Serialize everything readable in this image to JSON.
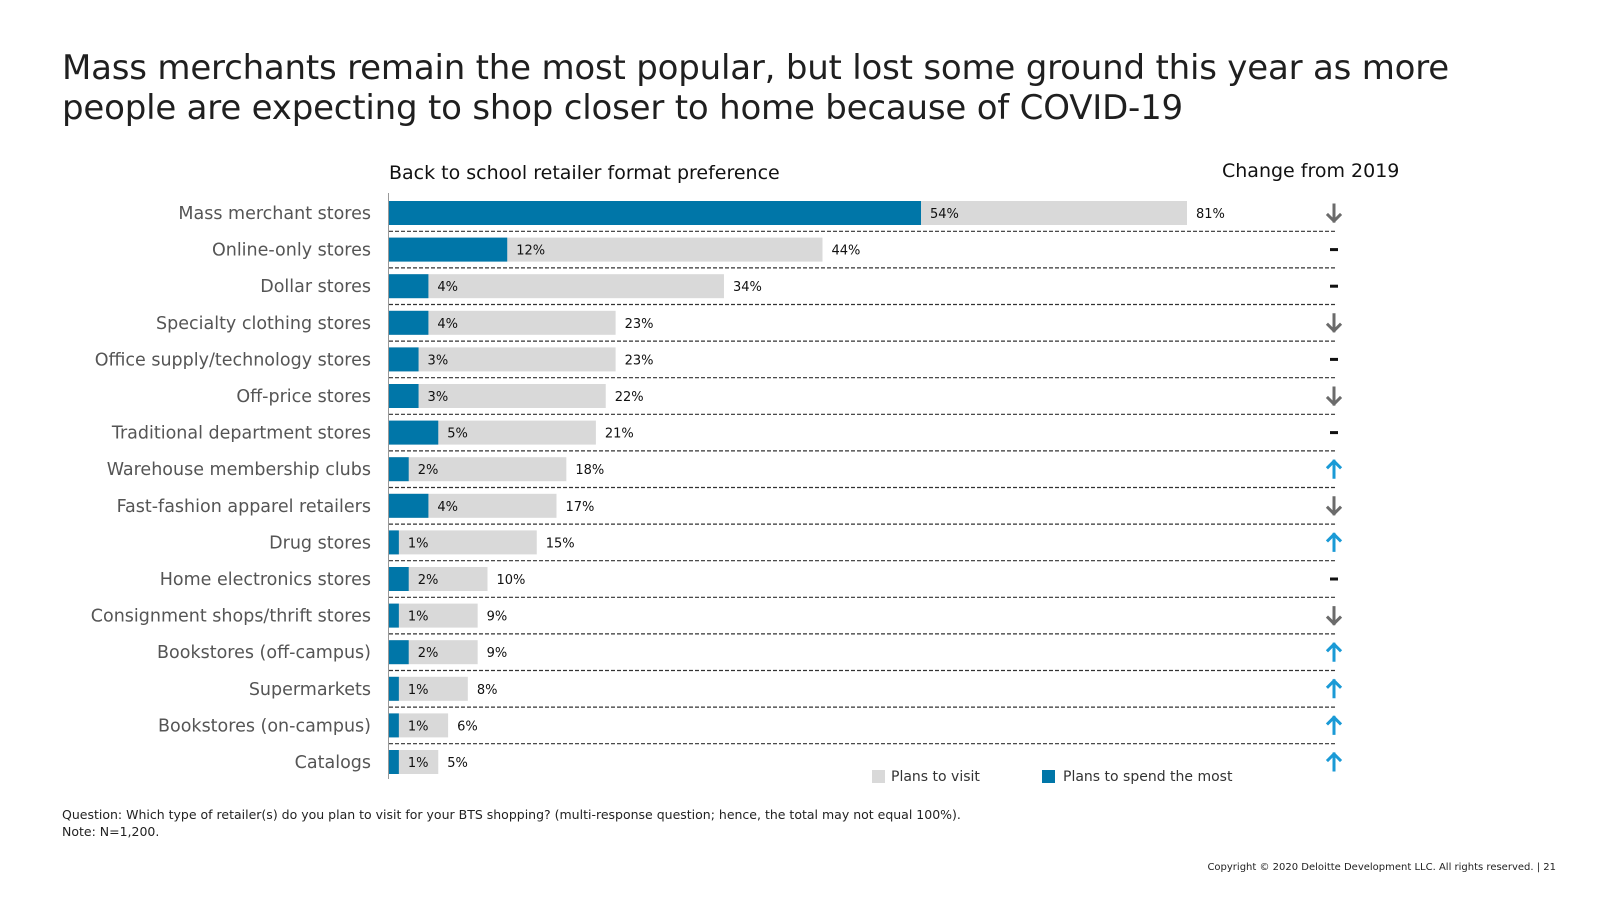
{
  "title": "Mass merchants remain the most popular, but lost some ground this year as more people are expecting to shop closer to home because of COVID-19",
  "chart_data": {
    "type": "bar",
    "orientation": "horizontal",
    "title": "Back to school retailer format preference",
    "change_header": "Change from 2019",
    "categories": [
      "Mass merchant stores",
      "Online-only stores",
      "Dollar stores",
      "Specialty clothing stores",
      "Office supply/technology stores",
      "Off-price stores",
      "Traditional department stores",
      "Warehouse membership clubs",
      "Fast-fashion apparel retailers",
      "Drug stores",
      "Home electronics stores",
      "Consignment shops/thrift stores",
      "Bookstores (off-campus)",
      "Supermarkets",
      "Bookstores (on-campus)",
      "Catalogs"
    ],
    "series": [
      {
        "name": "Plans to visit",
        "color": "#d9d9d9",
        "values": [
          81,
          44,
          34,
          23,
          23,
          22,
          21,
          18,
          17,
          15,
          10,
          9,
          9,
          8,
          6,
          5
        ]
      },
      {
        "name": "Plans to spend the most",
        "color": "#0076a8",
        "values": [
          54,
          12,
          4,
          4,
          3,
          3,
          5,
          2,
          4,
          1,
          2,
          1,
          2,
          1,
          1,
          1
        ]
      }
    ],
    "value_suffix": "%",
    "change_from_2019": [
      "down",
      "same",
      "same",
      "down",
      "same",
      "down",
      "same",
      "up",
      "down",
      "up",
      "same",
      "down",
      "up",
      "up",
      "up",
      "up"
    ],
    "xlim": [
      0,
      100
    ],
    "grid": false,
    "legend_position": "bottom-right"
  },
  "colors": {
    "down": "#6b6b6b",
    "up": "#1a9ad6",
    "same": "#111111"
  },
  "footnote": {
    "question": "Question: Which type of retailer(s) do you plan to visit for your BTS shopping? (multi-response question; hence, the total may not equal 100%).",
    "note": "Note: N=1,200."
  },
  "copyright": "Copyright © 2020 Deloitte Development LLC. All rights reserved.   |   21"
}
